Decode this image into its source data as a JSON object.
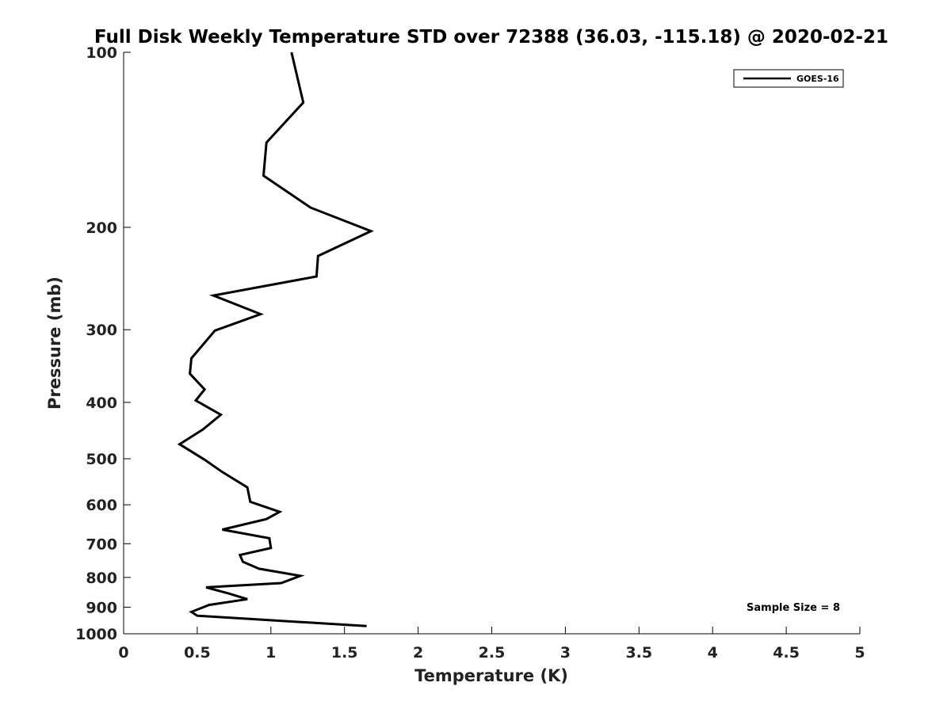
{
  "chart_data": {
    "type": "line",
    "title": "Full Disk Weekly Temperature STD over 72388 (36.03, -115.18) @ 2020-02-21",
    "xlabel": "Temperature (K)",
    "ylabel": "Pressure (mb)",
    "xlim": [
      0,
      5
    ],
    "ylim": [
      1000,
      100
    ],
    "yscale": "log",
    "y_reversed": true,
    "xticks": [
      "0",
      "0.5",
      "1",
      "1.5",
      "2",
      "2.5",
      "3",
      "3.5",
      "4",
      "4.5",
      "5"
    ],
    "yticks": [
      "100",
      "200",
      "300",
      "400",
      "500",
      "600",
      "700",
      "800",
      "900",
      "1000"
    ],
    "grid": false,
    "legend_position": "top-right",
    "series": [
      {
        "name": "GOES-16",
        "color": "#000000",
        "x": [
          1.14,
          1.22,
          0.97,
          0.95,
          1.27,
          1.68,
          1.32,
          1.31,
          0.61,
          0.93,
          0.62,
          0.46,
          0.45,
          0.55,
          0.49,
          0.66,
          0.54,
          0.38,
          0.55,
          0.67,
          0.84,
          0.86,
          1.06,
          0.97,
          0.67,
          0.99,
          1.0,
          0.79,
          0.81,
          0.92,
          1.2,
          1.07,
          0.56,
          0.71,
          0.84,
          0.58,
          0.46,
          0.5,
          1.65
        ],
        "y": [
          100,
          122,
          143,
          163,
          185,
          203,
          224,
          243,
          262,
          282,
          301,
          336,
          357,
          380,
          397,
          420,
          445,
          472,
          502,
          527,
          560,
          593,
          617,
          635,
          662,
          685,
          712,
          732,
          752,
          773,
          795,
          818,
          832,
          852,
          872,
          892,
          917,
          931,
          970
        ]
      }
    ],
    "legend": [
      "GOES-16"
    ],
    "annotation": "Sample Size = 8"
  }
}
